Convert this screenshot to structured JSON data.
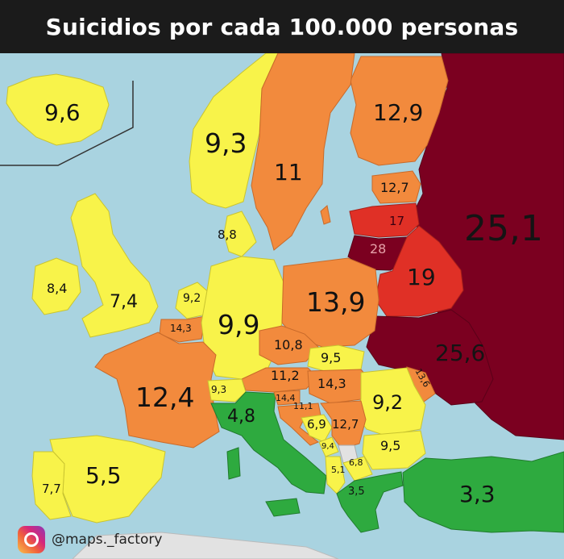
{
  "title": "Suicidios por cada 100.000 personas",
  "source_handle": "@maps._factory",
  "source_icon": "instagram-icon",
  "colors": {
    "sea": "#a9d3e0",
    "outside": "#e2e2e2",
    "green": "#2eaa3f",
    "yellow": "#f8f34a",
    "orange": "#f28a3d",
    "red": "#e03026",
    "darkred": "#7b0020"
  },
  "regions": [
    {
      "name": "Iceland",
      "value": "9,6",
      "color": "yellow"
    },
    {
      "name": "Norway",
      "value": "9,3",
      "color": "yellow"
    },
    {
      "name": "Sweden",
      "value": "11",
      "color": "orange"
    },
    {
      "name": "Finland",
      "value": "12,9",
      "color": "orange"
    },
    {
      "name": "Estonia",
      "value": "12,7",
      "color": "orange"
    },
    {
      "name": "Latvia",
      "value": "17",
      "color": "red"
    },
    {
      "name": "Lithuania",
      "value": "28",
      "color": "darkred"
    },
    {
      "name": "Russia",
      "value": "25,1",
      "color": "darkred"
    },
    {
      "name": "Belarus",
      "value": "19",
      "color": "red"
    },
    {
      "name": "Ukraine",
      "value": "25,6",
      "color": "darkred"
    },
    {
      "name": "Denmark",
      "value": "8,8",
      "color": "yellow"
    },
    {
      "name": "Ireland",
      "value": "8,4",
      "color": "yellow"
    },
    {
      "name": "United Kingdom",
      "value": "7,4",
      "color": "yellow"
    },
    {
      "name": "Netherlands",
      "value": "9,2",
      "color": "yellow"
    },
    {
      "name": "Belgium",
      "value": "14,3",
      "color": "orange"
    },
    {
      "name": "Germany",
      "value": "9,9",
      "color": "yellow"
    },
    {
      "name": "Poland",
      "value": "13,9",
      "color": "orange"
    },
    {
      "name": "Czechia",
      "value": "10,8",
      "color": "orange"
    },
    {
      "name": "Slovakia",
      "value": "9,5",
      "color": "yellow"
    },
    {
      "name": "Austria",
      "value": "11,2",
      "color": "orange"
    },
    {
      "name": "Hungary",
      "value": "14,3",
      "color": "orange"
    },
    {
      "name": "Moldova",
      "value": "13,6",
      "color": "orange"
    },
    {
      "name": "Romania",
      "value": "9,2",
      "color": "yellow"
    },
    {
      "name": "France",
      "value": "12,4",
      "color": "orange"
    },
    {
      "name": "Switzerland",
      "value": "9,3",
      "color": "yellow"
    },
    {
      "name": "Italy",
      "value": "4,8",
      "color": "green"
    },
    {
      "name": "Slovenia",
      "value": "14,4",
      "color": "orange"
    },
    {
      "name": "Croatia",
      "value": "11,1",
      "color": "orange"
    },
    {
      "name": "Bosnia and Herzegovina",
      "value": "6,9",
      "color": "yellow"
    },
    {
      "name": "Serbia",
      "value": "12,7",
      "color": "orange"
    },
    {
      "name": "Montenegro",
      "value": "9,4",
      "color": "yellow"
    },
    {
      "name": "Kosovo",
      "value": "6,8",
      "color": "yellow"
    },
    {
      "name": "Bulgaria",
      "value": "9,5",
      "color": "yellow"
    },
    {
      "name": "Albania",
      "value": "5,1",
      "color": "yellow"
    },
    {
      "name": "Greece",
      "value": "3,5",
      "color": "green"
    },
    {
      "name": "Turkey",
      "value": "3,3",
      "color": "green"
    },
    {
      "name": "Spain",
      "value": "5,5",
      "color": "yellow"
    },
    {
      "name": "Portugal",
      "value": "7,7",
      "color": "yellow"
    }
  ]
}
